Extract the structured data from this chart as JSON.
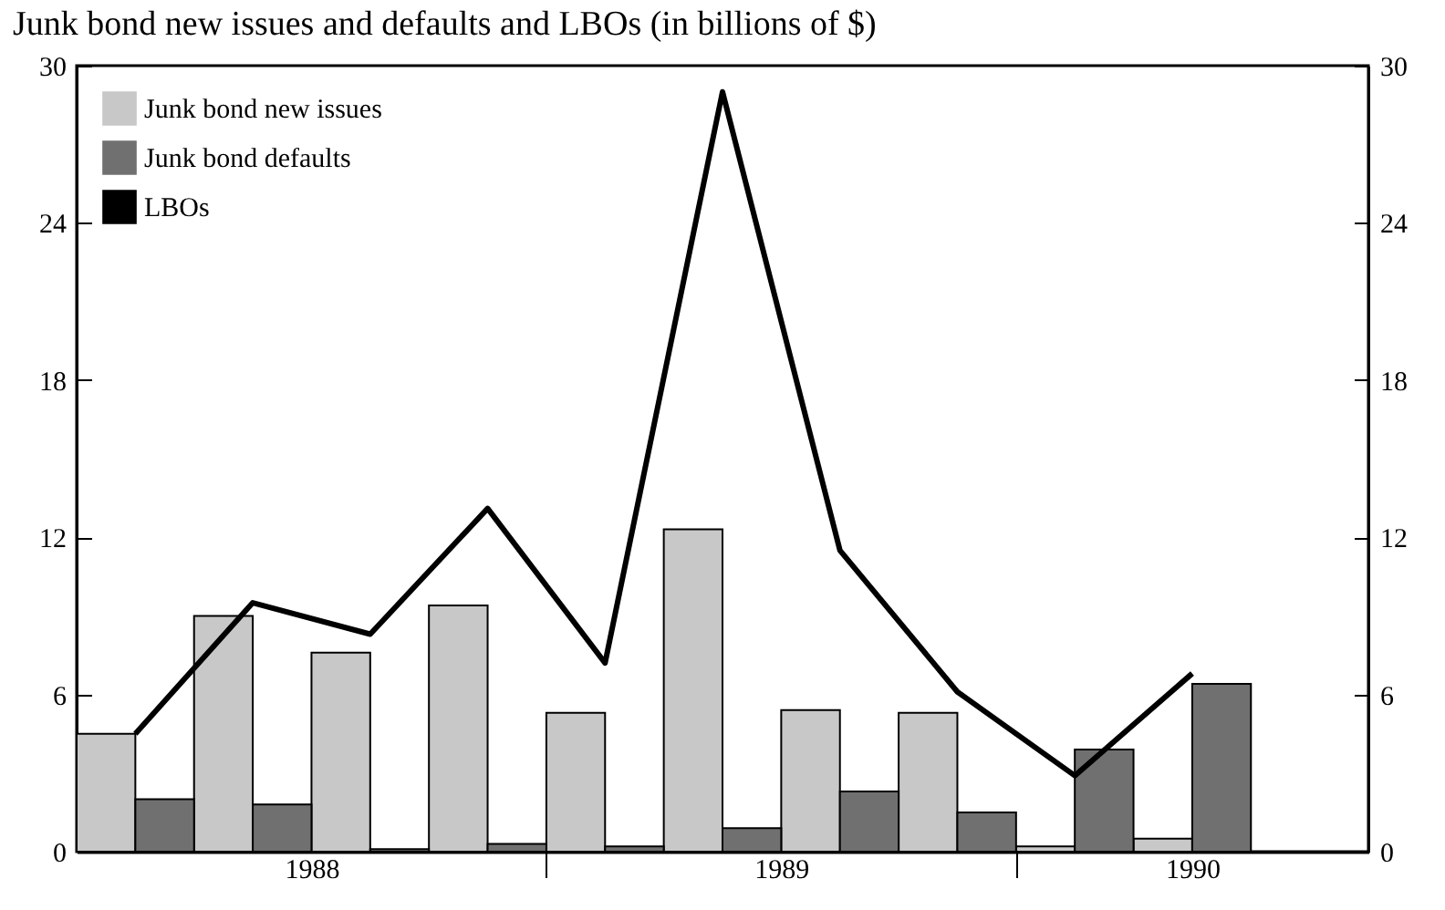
{
  "chart_data": {
    "type": "bar",
    "title": "Junk bond new issues and defaults and LBOs (in billions of $)",
    "x": [
      1988.125,
      1988.375,
      1988.625,
      1988.875,
      1989.125,
      1989.375,
      1989.625,
      1989.875,
      1990.125,
      1990.375
    ],
    "xlim": [
      1988,
      1990.75
    ],
    "xticks": [
      {
        "value": 1988.5,
        "label": "1988"
      },
      {
        "value": 1989,
        "label": null
      },
      {
        "value": 1989.5,
        "label": "1989"
      },
      {
        "value": 1990,
        "label": null
      },
      {
        "value": 1990.375,
        "label": "1990"
      }
    ],
    "series": [
      {
        "name": "Junk bond new issues",
        "color": "#c8c8c8",
        "values": [
          4.5,
          9.0,
          7.6,
          9.4,
          5.3,
          12.3,
          5.4,
          5.3,
          0.2,
          0.5
        ]
      },
      {
        "name": "Junk bond defaults",
        "color": "#707070",
        "values": [
          2.0,
          1.8,
          0.1,
          0.3,
          0.2,
          0.9,
          2.3,
          1.5,
          3.9,
          6.4
        ]
      },
      {
        "name": "LBOs",
        "type": "line",
        "color": "#000000",
        "values": [
          4.5,
          9.5,
          8.3,
          13.1,
          7.2,
          29.0,
          11.5,
          6.1,
          2.9,
          6.8
        ]
      }
    ],
    "ylim": [
      0,
      30
    ],
    "yticks": [
      0,
      6,
      12,
      18,
      24,
      30
    ],
    "y2lim": [
      0,
      30
    ],
    "y2ticks": [
      0,
      6,
      12,
      18,
      24,
      30
    ],
    "legend": "top left",
    "grid": false
  }
}
